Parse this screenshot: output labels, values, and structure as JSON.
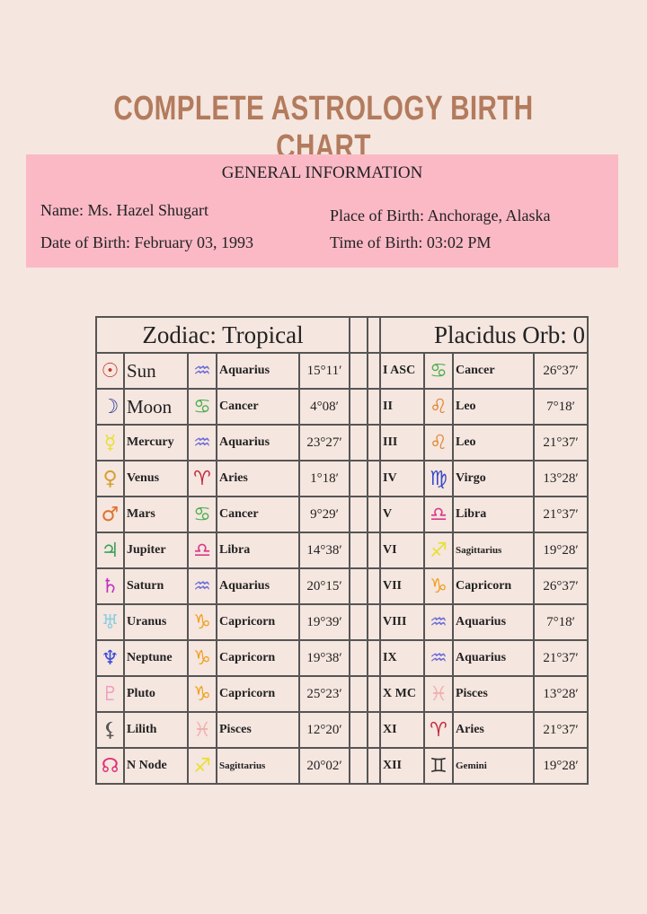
{
  "title": "COMPLETE ASTROLOGY BIRTH CHART",
  "general": {
    "heading": "GENERAL INFORMATION",
    "name": "Name: Ms. Hazel Shugart",
    "dob": "Date of Birth: February 03, 1993",
    "pob": "Place of Birth: Anchorage, Alaska",
    "tob": "Time of Birth: 03:02 PM"
  },
  "zodiac_header": "Zodiac: Tropical",
  "houses_header": "Placidus Orb: 0",
  "planets": [
    {
      "glyph": "☉",
      "color": "#c0392b",
      "name": "Sun",
      "sign_glyph": "♒",
      "sign_color": "#6a6ad8",
      "sign": "Aquarius",
      "deg": "15°11′"
    },
    {
      "glyph": "☽",
      "color": "#2c3e9e",
      "name": "Moon",
      "sign_glyph": "♋",
      "sign_color": "#4caf50",
      "sign": "Cancer",
      "deg": "4°08′"
    },
    {
      "glyph": "☿",
      "color": "#e8e030",
      "name": "Mercury",
      "sign_glyph": "♒",
      "sign_color": "#6a6ad8",
      "sign": "Aquarius",
      "deg": "23°27′"
    },
    {
      "glyph": "♀",
      "color": "#d4a030",
      "name": "Venus",
      "sign_glyph": "♈",
      "sign_color": "#c0283c",
      "sign": "Aries",
      "deg": "1°18′"
    },
    {
      "glyph": "♂",
      "color": "#e0702a",
      "name": "Mars",
      "sign_glyph": "♋",
      "sign_color": "#4caf50",
      "sign": "Cancer",
      "deg": "9°29′"
    },
    {
      "glyph": "♃",
      "color": "#3aa35a",
      "name": "Jupiter",
      "sign_glyph": "♎",
      "sign_color": "#d83a8a",
      "sign": "Libra",
      "deg": "14°38′"
    },
    {
      "glyph": "♄",
      "color": "#c030c0",
      "name": "Saturn",
      "sign_glyph": "♒",
      "sign_color": "#6a6ad8",
      "sign": "Aquarius",
      "deg": "20°15′"
    },
    {
      "glyph": "♅",
      "color": "#8ccfe0",
      "name": "Uranus",
      "sign_glyph": "♑",
      "sign_color": "#f0a020",
      "sign": "Capricorn",
      "deg": "19°39′"
    },
    {
      "glyph": "♆",
      "color": "#3a4ad8",
      "name": "Neptune",
      "sign_glyph": "♑",
      "sign_color": "#f0a020",
      "sign": "Capricorn",
      "deg": "19°38′"
    },
    {
      "glyph": "♇",
      "color": "#f0a0c0",
      "name": "Pluto",
      "sign_glyph": "♑",
      "sign_color": "#f0a020",
      "sign": "Capricorn",
      "deg": "25°23′"
    },
    {
      "glyph": "⚸",
      "color": "#555555",
      "name": "Lilith",
      "sign_glyph": "♓",
      "sign_color": "#f0b0b0",
      "sign": "Pisces",
      "deg": "12°20′"
    },
    {
      "glyph": "☊",
      "color": "#e0307a",
      "name": "N Node",
      "sign_glyph": "♐",
      "sign_color": "#e8e030",
      "sign": "Sagittarius",
      "deg": "20°02′"
    }
  ],
  "houses": [
    {
      "house": "I ASC",
      "sign_glyph": "♋",
      "sign_color": "#4caf50",
      "sign": "Cancer",
      "deg": "26°37′"
    },
    {
      "house": "II",
      "sign_glyph": "♌",
      "sign_color": "#e0802a",
      "sign": "Leo",
      "deg": "7°18′"
    },
    {
      "house": "III",
      "sign_glyph": "♌",
      "sign_color": "#e0802a",
      "sign": "Leo",
      "deg": "21°37′"
    },
    {
      "house": "IV",
      "sign_glyph": "♍",
      "sign_color": "#3a4ac8",
      "sign": "Virgo",
      "deg": "13°28′"
    },
    {
      "house": "V",
      "sign_glyph": "♎",
      "sign_color": "#d83a8a",
      "sign": "Libra",
      "deg": "21°37′"
    },
    {
      "house": "VI",
      "sign_glyph": "♐",
      "sign_color": "#e8e030",
      "sign": "Sagittarius",
      "deg": "19°28′"
    },
    {
      "house": "VII",
      "sign_glyph": "♑",
      "sign_color": "#f0a020",
      "sign": "Capricorn",
      "deg": "26°37′"
    },
    {
      "house": "VIII",
      "sign_glyph": "♒",
      "sign_color": "#6a6ad8",
      "sign": "Aquarius",
      "deg": "7°18′"
    },
    {
      "house": "IX",
      "sign_glyph": "♒",
      "sign_color": "#6a6ad8",
      "sign": "Aquarius",
      "deg": "21°37′"
    },
    {
      "house": "X MC",
      "sign_glyph": "♓",
      "sign_color": "#f0b0b0",
      "sign": "Pisces",
      "deg": "13°28′"
    },
    {
      "house": "XI",
      "sign_glyph": "♈",
      "sign_color": "#c0283c",
      "sign": "Aries",
      "deg": "21°37′"
    },
    {
      "house": "XII",
      "sign_glyph": "♊",
      "sign_color": "#333333",
      "sign": "Gemini",
      "deg": "19°28′"
    }
  ]
}
